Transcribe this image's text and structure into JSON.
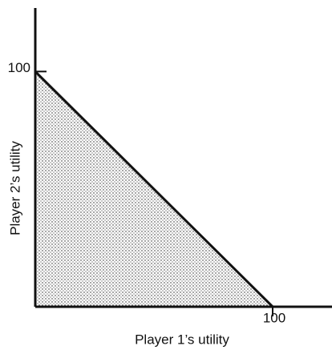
{
  "chart_data": {
    "type": "area",
    "x_label": "Player 1’s utility",
    "y_label": "Player 2’s utility",
    "x": [
      0,
      100
    ],
    "series": [
      {
        "color": "#111111",
        "values": [
          100,
          0
        ]
      }
    ],
    "xlim": [
      0,
      125
    ],
    "ylim": [
      0,
      127
    ],
    "xticks": [
      100
    ],
    "yticks": [
      100
    ],
    "grid": false
  }
}
